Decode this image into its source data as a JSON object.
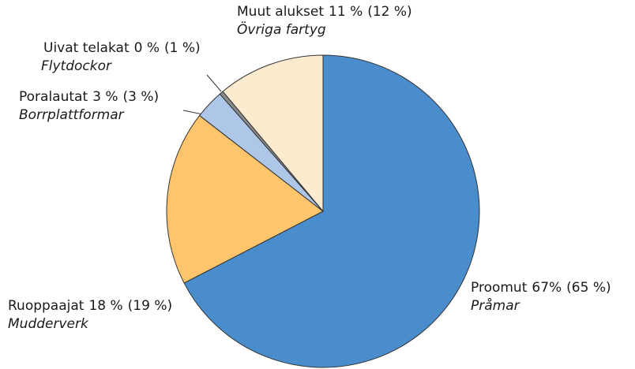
{
  "chart_data": {
    "type": "pie",
    "categories": [
      "Proomut",
      "Ruoppaajat",
      "Poralautat",
      "Uivat telakat",
      "Muut alukset"
    ],
    "translations": [
      "Pråmar",
      "Mudderverk",
      "Borrplattformar",
      "Flytdockor",
      "Övriga fartyg"
    ],
    "values": [
      67,
      18,
      3,
      0.4,
      11
    ],
    "value_labels": [
      "67%",
      "18 %",
      "3 %",
      "0 %",
      "11 %"
    ],
    "previous_labels": [
      "(65 %)",
      "(19 %)",
      "(3 %)",
      "(1 %)",
      "(12 %)"
    ],
    "colors": [
      "#4a8dcc",
      "#fec56c",
      "#aec6e8",
      "#8a8a8a",
      "#fdebd0"
    ]
  }
}
